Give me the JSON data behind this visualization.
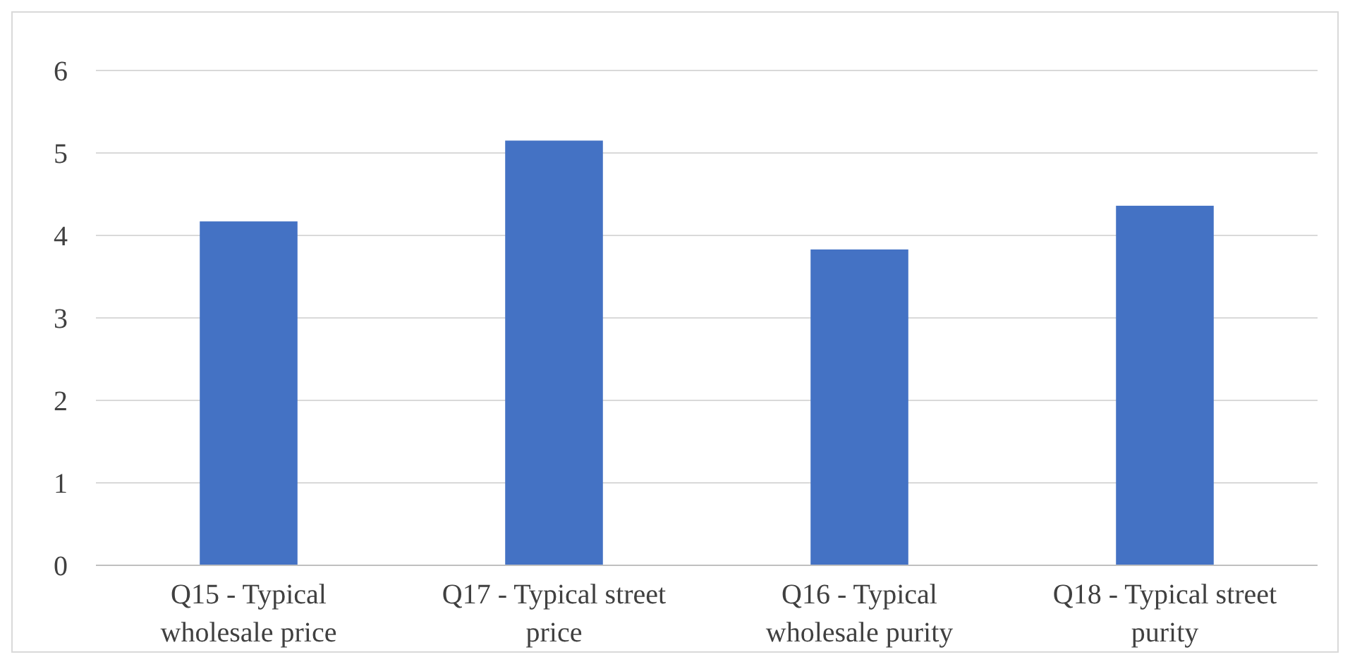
{
  "chart_data": {
    "type": "bar",
    "categories": [
      "Q15 - Typical wholesale price",
      "Q17 - Typical street price",
      "Q16 - Typical wholesale purity",
      "Q18 - Typical street purity"
    ],
    "values": [
      4.17,
      5.15,
      3.83,
      4.36
    ],
    "color": "#4472c4",
    "ylim": [
      0,
      6
    ],
    "yticks": [
      0,
      1,
      2,
      3,
      4,
      5,
      6
    ],
    "grid": "y"
  }
}
